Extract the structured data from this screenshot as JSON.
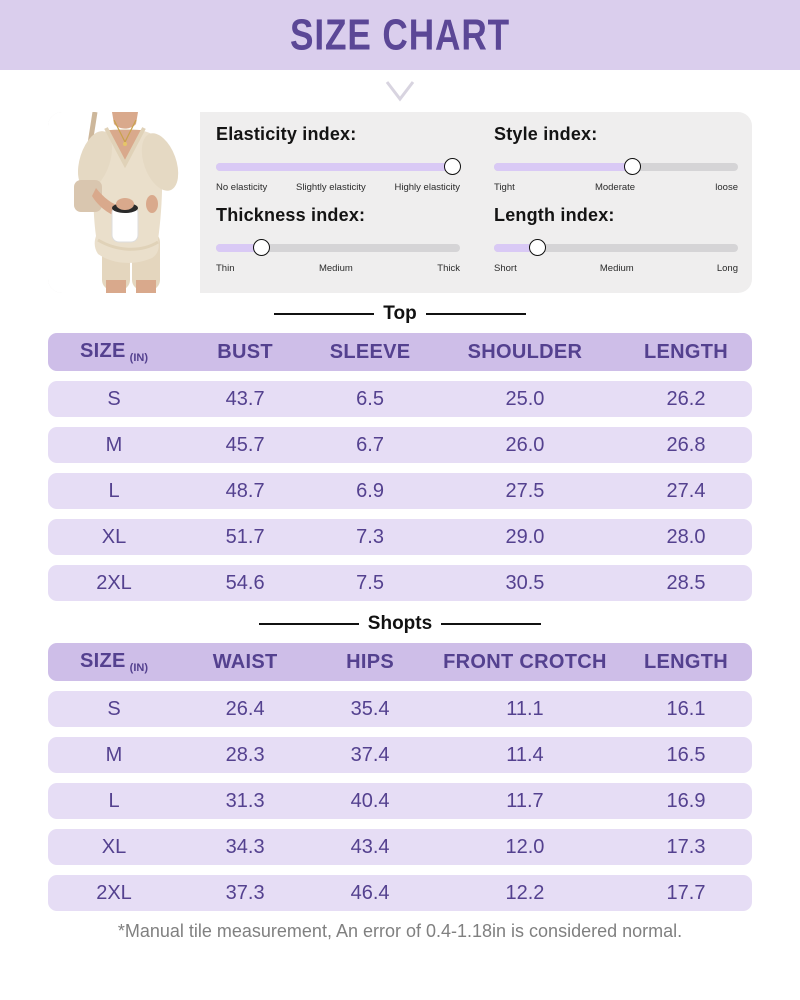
{
  "header": {
    "title": "SIZE CHART"
  },
  "panel": {
    "indices": [
      {
        "title": "Elasticity index:",
        "percent": 97,
        "scale": [
          "No elasticity",
          "Slightly elasticity",
          "Highly elasticity"
        ]
      },
      {
        "title": "Style index:",
        "percent": 57,
        "scale": [
          "Tight",
          "Moderate",
          "loose"
        ]
      },
      {
        "title": "Thickness index:",
        "percent": 19,
        "scale": [
          "Thin",
          "Medium",
          "Thick"
        ]
      },
      {
        "title": "Length index:",
        "percent": 18,
        "scale": [
          "Short",
          "Medium",
          "Long"
        ]
      }
    ]
  },
  "tables": [
    {
      "section_title": "Top",
      "unit_label": "(IN)",
      "headers": [
        "SIZE",
        "BUST",
        "SLEEVE",
        "SHOULDER",
        "LENGTH"
      ],
      "rows": [
        [
          "S",
          "43.7",
          "6.5",
          "25.0",
          "26.2"
        ],
        [
          "M",
          "45.7",
          "6.7",
          "26.0",
          "26.8"
        ],
        [
          "L",
          "48.7",
          "6.9",
          "27.5",
          "27.4"
        ],
        [
          "XL",
          "51.7",
          "7.3",
          "29.0",
          "28.0"
        ],
        [
          "2XL",
          "54.6",
          "7.5",
          "30.5",
          "28.5"
        ]
      ]
    },
    {
      "section_title": "Shopts",
      "unit_label": "(IN)",
      "headers": [
        "SIZE",
        "WAIST",
        "HIPS",
        "FRONT CROTCH",
        "LENGTH"
      ],
      "rows": [
        [
          "S",
          "26.4",
          "35.4",
          "11.1",
          "16.1"
        ],
        [
          "M",
          "28.3",
          "37.4",
          "11.4",
          "16.5"
        ],
        [
          "L",
          "31.3",
          "40.4",
          "11.7",
          "16.9"
        ],
        [
          "XL",
          "34.3",
          "43.4",
          "12.0",
          "17.3"
        ],
        [
          "2XL",
          "37.3",
          "46.4",
          "12.2",
          "17.7"
        ]
      ]
    }
  ],
  "footnote": "*Manual tile measurement, An error of 0.4-1.18in is considered normal.",
  "colors": {
    "header_band": "#DACEED",
    "title_text": "#5B4796",
    "table_header_bg": "#CEBEE8",
    "table_row_bg": "#E6DDF5",
    "table_text": "#54418F",
    "slider_fill": "#D9C9F5",
    "slider_track": "#D5D4D6",
    "footnote_text": "#808080"
  }
}
